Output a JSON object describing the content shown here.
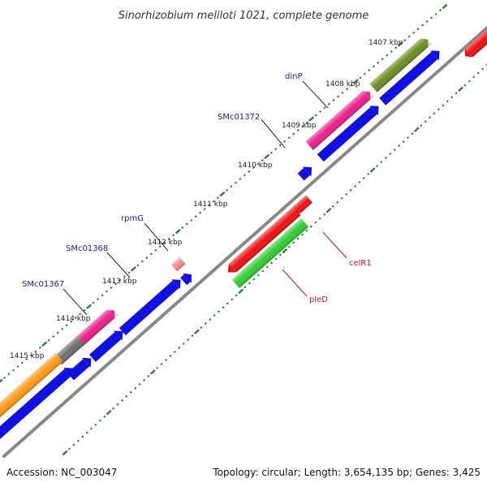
{
  "title": "Sinorhizobium meliloti 1021, complete genome",
  "footer": {
    "accession": "Accession: NC_003047",
    "summary": "Topology: circular; Length: 3,654,135 bp; Genes: 3,425"
  },
  "scale": {
    "unit": "kbp",
    "ticks": [
      "1407 kbp",
      "1408 kbp",
      "1409 kbp",
      "1410 kbp",
      "1411 kbp",
      "1412 kbp",
      "1413 kbp",
      "1414 kbp",
      "1415 kbp"
    ]
  },
  "gene_labels": {
    "forward": [
      "dinP",
      "SMc01372",
      "rpmG",
      "SMc01368",
      "SMc01367"
    ],
    "reverse": [
      "celR1",
      "pleD"
    ]
  },
  "colors": {
    "backbone": "#888888",
    "tick": "#2e7d32",
    "label_forward": "#1a1aa6",
    "label_reverse": "#cc1111",
    "cds_blue": "#1010e0",
    "gene_magenta": "#ee1e8c",
    "gene_olive": "#6b8e23",
    "gene_gray": "#6e6e6e",
    "gene_orange": "#ff9a1a",
    "gene_red": "#ee1111",
    "gene_green": "#33cc33",
    "gene_pink": "#f28a8a"
  }
}
